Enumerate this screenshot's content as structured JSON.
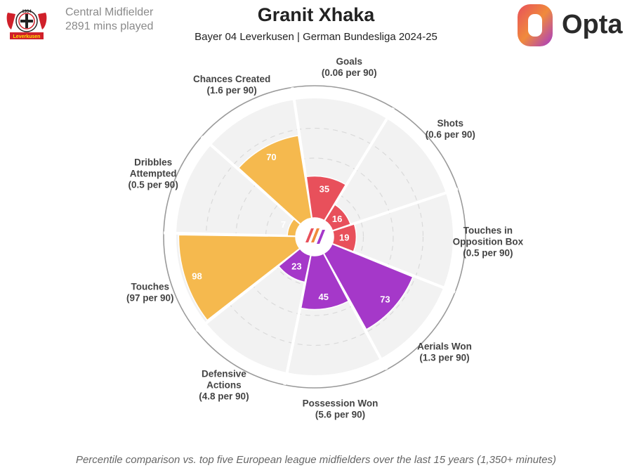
{
  "header": {
    "position": "Central Midfielder",
    "minutes": "2891 mins played",
    "title": "Granit Xhaka",
    "subtitle": "Bayer 04 Leverkusen | German Bundesliga 2024-25",
    "crest_year": "1904",
    "crest_club": "Leverkusen",
    "brand": "Opta"
  },
  "footer": "Percentile comparison vs. top five European league midfielders over the last 15 years (1,350+ minutes)",
  "colors": {
    "attacking": "#e8505b",
    "possession": "#f5b94e",
    "defending": "#a538c9",
    "gray_value": "#9a9a9a"
  },
  "chart_data": {
    "type": "radar",
    "scale": [
      0,
      100
    ],
    "segments": [
      {
        "label": [
          "Goals",
          "(0.06 per 90)"
        ],
        "value": 35,
        "group": "attacking"
      },
      {
        "label": [
          "Shots",
          "(0.6 per 90)"
        ],
        "value": 16,
        "group": "attacking"
      },
      {
        "label": [
          "Touches in",
          "Opposition Box",
          "(0.5 per 90)"
        ],
        "value": 19,
        "group": "attacking"
      },
      {
        "label": [
          "Aerials Won",
          "(1.3 per 90)"
        ],
        "value": 73,
        "group": "defending"
      },
      {
        "label": [
          "Possession Won",
          "(5.6 per 90)"
        ],
        "value": 45,
        "group": "defending"
      },
      {
        "label": [
          "Defensive",
          "Actions",
          "(4.8 per 90)"
        ],
        "value": 23,
        "group": "defending"
      },
      {
        "label": [
          "Touches",
          "(97 per 90)"
        ],
        "value": 98,
        "group": "possession"
      },
      {
        "label": [
          "Dribbles",
          "Attempted",
          "(0.5 per 90)"
        ],
        "value": 7,
        "group": "possession"
      },
      {
        "label": [
          "Chances Created",
          "(1.6 per 90)"
        ],
        "value": 70,
        "group": "possession"
      }
    ]
  }
}
